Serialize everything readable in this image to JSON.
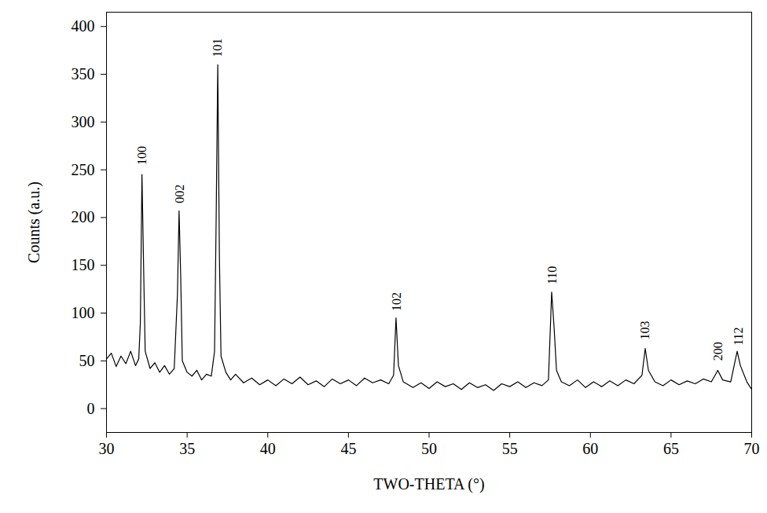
{
  "chart_data": {
    "type": "line",
    "x_label": "TWO-THETA (°)",
    "y_label": "Counts (a.u.)",
    "color": "#000000",
    "grid": false,
    "xlim": [
      30,
      70
    ],
    "xticks": [
      30,
      35,
      40,
      45,
      50,
      55,
      60,
      65,
      70
    ],
    "ylim": [
      -25,
      415
    ],
    "yticks": [
      0,
      50,
      100,
      150,
      200,
      250,
      300,
      350,
      400
    ],
    "x": [
      30.0,
      30.3,
      30.6,
      30.9,
      31.2,
      31.5,
      31.8,
      32.0,
      32.1,
      32.2,
      32.3,
      32.4,
      32.7,
      33.0,
      33.3,
      33.6,
      33.9,
      34.2,
      34.4,
      34.5,
      34.6,
      34.7,
      35.0,
      35.3,
      35.6,
      35.9,
      36.2,
      36.5,
      36.7,
      36.8,
      36.9,
      37.0,
      37.1,
      37.4,
      37.7,
      38.0,
      38.5,
      39.0,
      39.5,
      40.0,
      40.5,
      41.0,
      41.5,
      42.0,
      42.5,
      43.0,
      43.5,
      44.0,
      44.5,
      45.0,
      45.5,
      46.0,
      46.5,
      47.0,
      47.5,
      47.8,
      47.95,
      48.1,
      48.4,
      49.0,
      49.5,
      50.0,
      50.5,
      51.0,
      51.5,
      52.0,
      52.5,
      53.0,
      53.5,
      54.0,
      54.5,
      55.0,
      55.5,
      56.0,
      56.5,
      57.0,
      57.4,
      57.6,
      57.75,
      57.9,
      58.2,
      58.7,
      59.2,
      59.7,
      60.2,
      60.7,
      61.2,
      61.7,
      62.2,
      62.7,
      63.2,
      63.4,
      63.6,
      64.0,
      64.5,
      65.0,
      65.5,
      66.0,
      66.5,
      67.0,
      67.5,
      67.9,
      68.2,
      68.7,
      69.1,
      69.3,
      69.7,
      70.0
    ],
    "values": [
      52,
      58,
      44,
      55,
      47,
      60,
      45,
      52,
      90,
      245,
      150,
      60,
      42,
      48,
      38,
      45,
      36,
      42,
      120,
      207,
      140,
      50,
      38,
      34,
      40,
      30,
      36,
      34,
      60,
      200,
      360,
      160,
      55,
      38,
      30,
      36,
      27,
      32,
      25,
      30,
      24,
      31,
      26,
      33,
      25,
      29,
      23,
      31,
      26,
      30,
      24,
      32,
      27,
      30,
      26,
      35,
      95,
      45,
      28,
      22,
      27,
      21,
      28,
      23,
      26,
      20,
      27,
      22,
      25,
      19,
      26,
      23,
      28,
      22,
      27,
      24,
      30,
      122,
      85,
      40,
      28,
      24,
      30,
      22,
      28,
      23,
      29,
      24,
      30,
      26,
      35,
      63,
      40,
      28,
      24,
      30,
      25,
      29,
      26,
      31,
      28,
      40,
      30,
      28,
      60,
      45,
      28,
      20
    ],
    "annotations": [
      {
        "text": "100",
        "x": 32.2,
        "y": 255
      },
      {
        "text": "002",
        "x": 34.55,
        "y": 215
      },
      {
        "text": "101",
        "x": 36.9,
        "y": 368
      },
      {
        "text": "102",
        "x": 48.0,
        "y": 102
      },
      {
        "text": "110",
        "x": 57.65,
        "y": 130
      },
      {
        "text": "103",
        "x": 63.4,
        "y": 72
      },
      {
        "text": "200",
        "x": 67.9,
        "y": 50
      },
      {
        "text": "112",
        "x": 69.2,
        "y": 66
      }
    ]
  }
}
